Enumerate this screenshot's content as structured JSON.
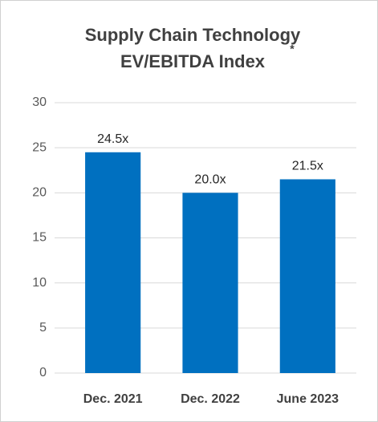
{
  "chart_data": {
    "type": "bar",
    "title": [
      "Supply Chain Technology",
      "EV/EBITDA Index"
    ],
    "annotation": "*",
    "categories": [
      "Dec. 2021",
      "Dec. 2022",
      "June 2023"
    ],
    "values": [
      24.5,
      20.0,
      21.5
    ],
    "value_labels": [
      "24.5x",
      "20.0x",
      "21.5x"
    ],
    "color": "#0070c0",
    "ylim": [
      0,
      30
    ],
    "yticks": [
      0,
      5,
      10,
      15,
      20,
      25,
      30
    ],
    "grid": true
  }
}
